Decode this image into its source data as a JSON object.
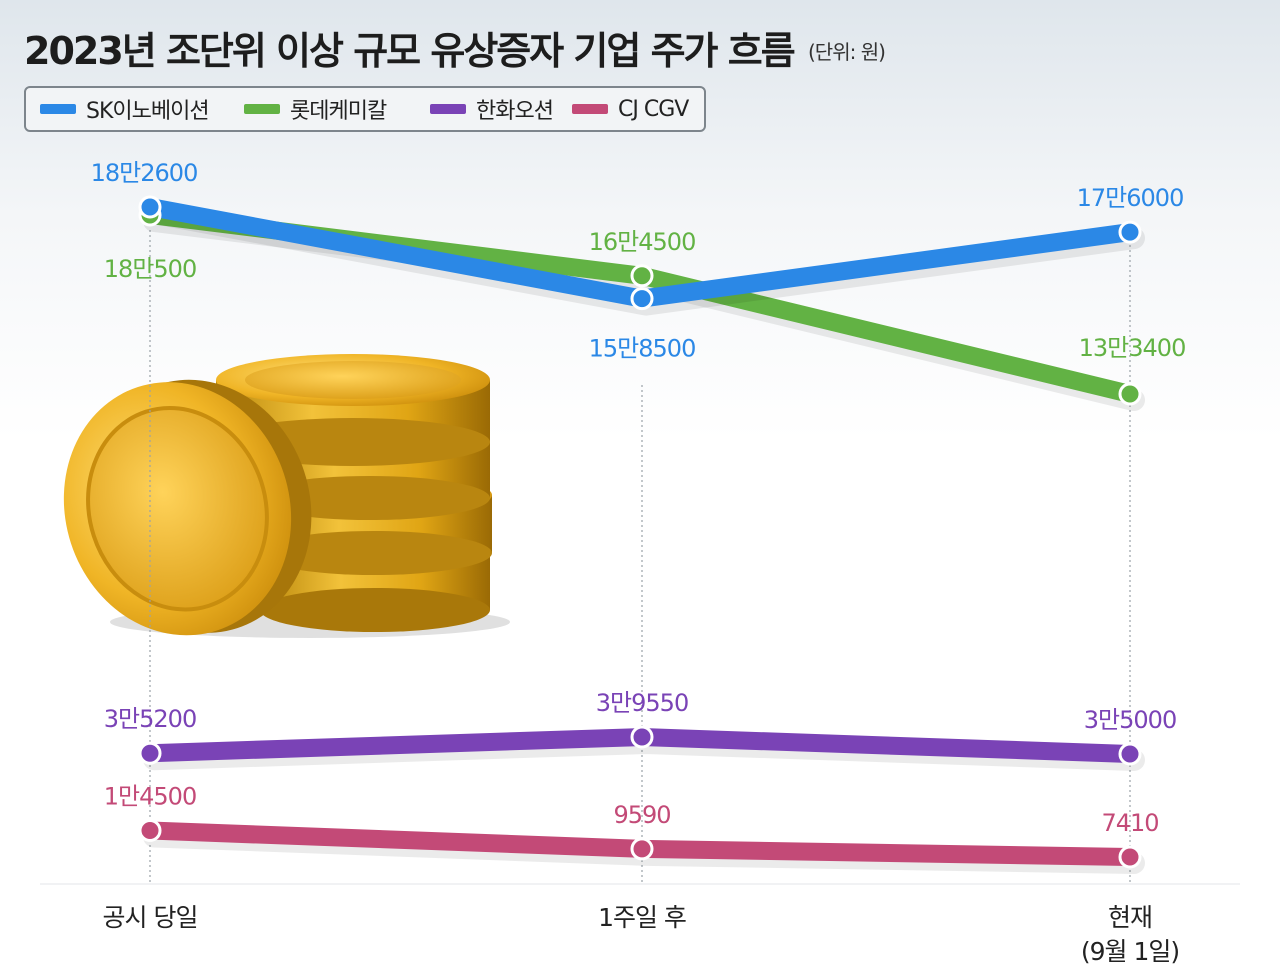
{
  "header": {
    "title": "2023년 조단위 이상 규모 유상증자 기업 주가 흐름",
    "unit": "(단위: 원)"
  },
  "legend": [
    {
      "label": "SK이노베이션",
      "color": "#2b88e6"
    },
    {
      "label": "롯데케미칼",
      "color": "#62b244"
    },
    {
      "label": "한화오션",
      "color": "#7a43b6"
    },
    {
      "label": "CJ CGV",
      "color": "#c34a77"
    }
  ],
  "chart_data": {
    "type": "line",
    "categories": [
      "공시 당일",
      "1주일 후",
      "현재\n(9월 1일)"
    ],
    "series": [
      {
        "name": "SK이노베이션",
        "color": "#2b88e6",
        "values": [
          182600,
          158500,
          176000
        ],
        "labels": [
          "18만2600",
          "15만8500",
          "17만6000"
        ]
      },
      {
        "name": "롯데케미칼",
        "color": "#62b244",
        "values": [
          180500,
          164500,
          133400
        ],
        "labels": [
          "18만500",
          "16만4500",
          "13만3400"
        ]
      },
      {
        "name": "한화오션",
        "color": "#7a43b6",
        "values": [
          35200,
          39550,
          35000
        ],
        "labels": [
          "3만5200",
          "3만9550",
          "3만5000"
        ]
      },
      {
        "name": "CJ CGV",
        "color": "#c34a77",
        "values": [
          14500,
          9590,
          7410
        ],
        "labels": [
          "1만4500",
          "9590",
          "7410"
        ]
      }
    ],
    "grid": false,
    "legend_position": "top-left"
  }
}
